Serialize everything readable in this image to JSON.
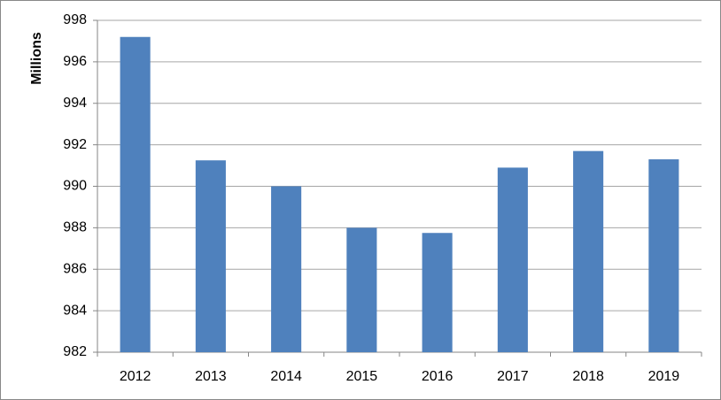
{
  "chart_data": {
    "type": "bar",
    "y_label": "Millions",
    "categories": [
      "2012",
      "2013",
      "2014",
      "2015",
      "2016",
      "2017",
      "2018",
      "2019"
    ],
    "values": [
      997.2,
      991.25,
      990.0,
      988.0,
      987.75,
      990.9,
      991.7,
      991.3
    ],
    "color": "#4f81bd",
    "ylim": [
      982,
      998
    ],
    "yticks": [
      982,
      984,
      986,
      988,
      990,
      992,
      994,
      996,
      998
    ],
    "grid": true
  }
}
